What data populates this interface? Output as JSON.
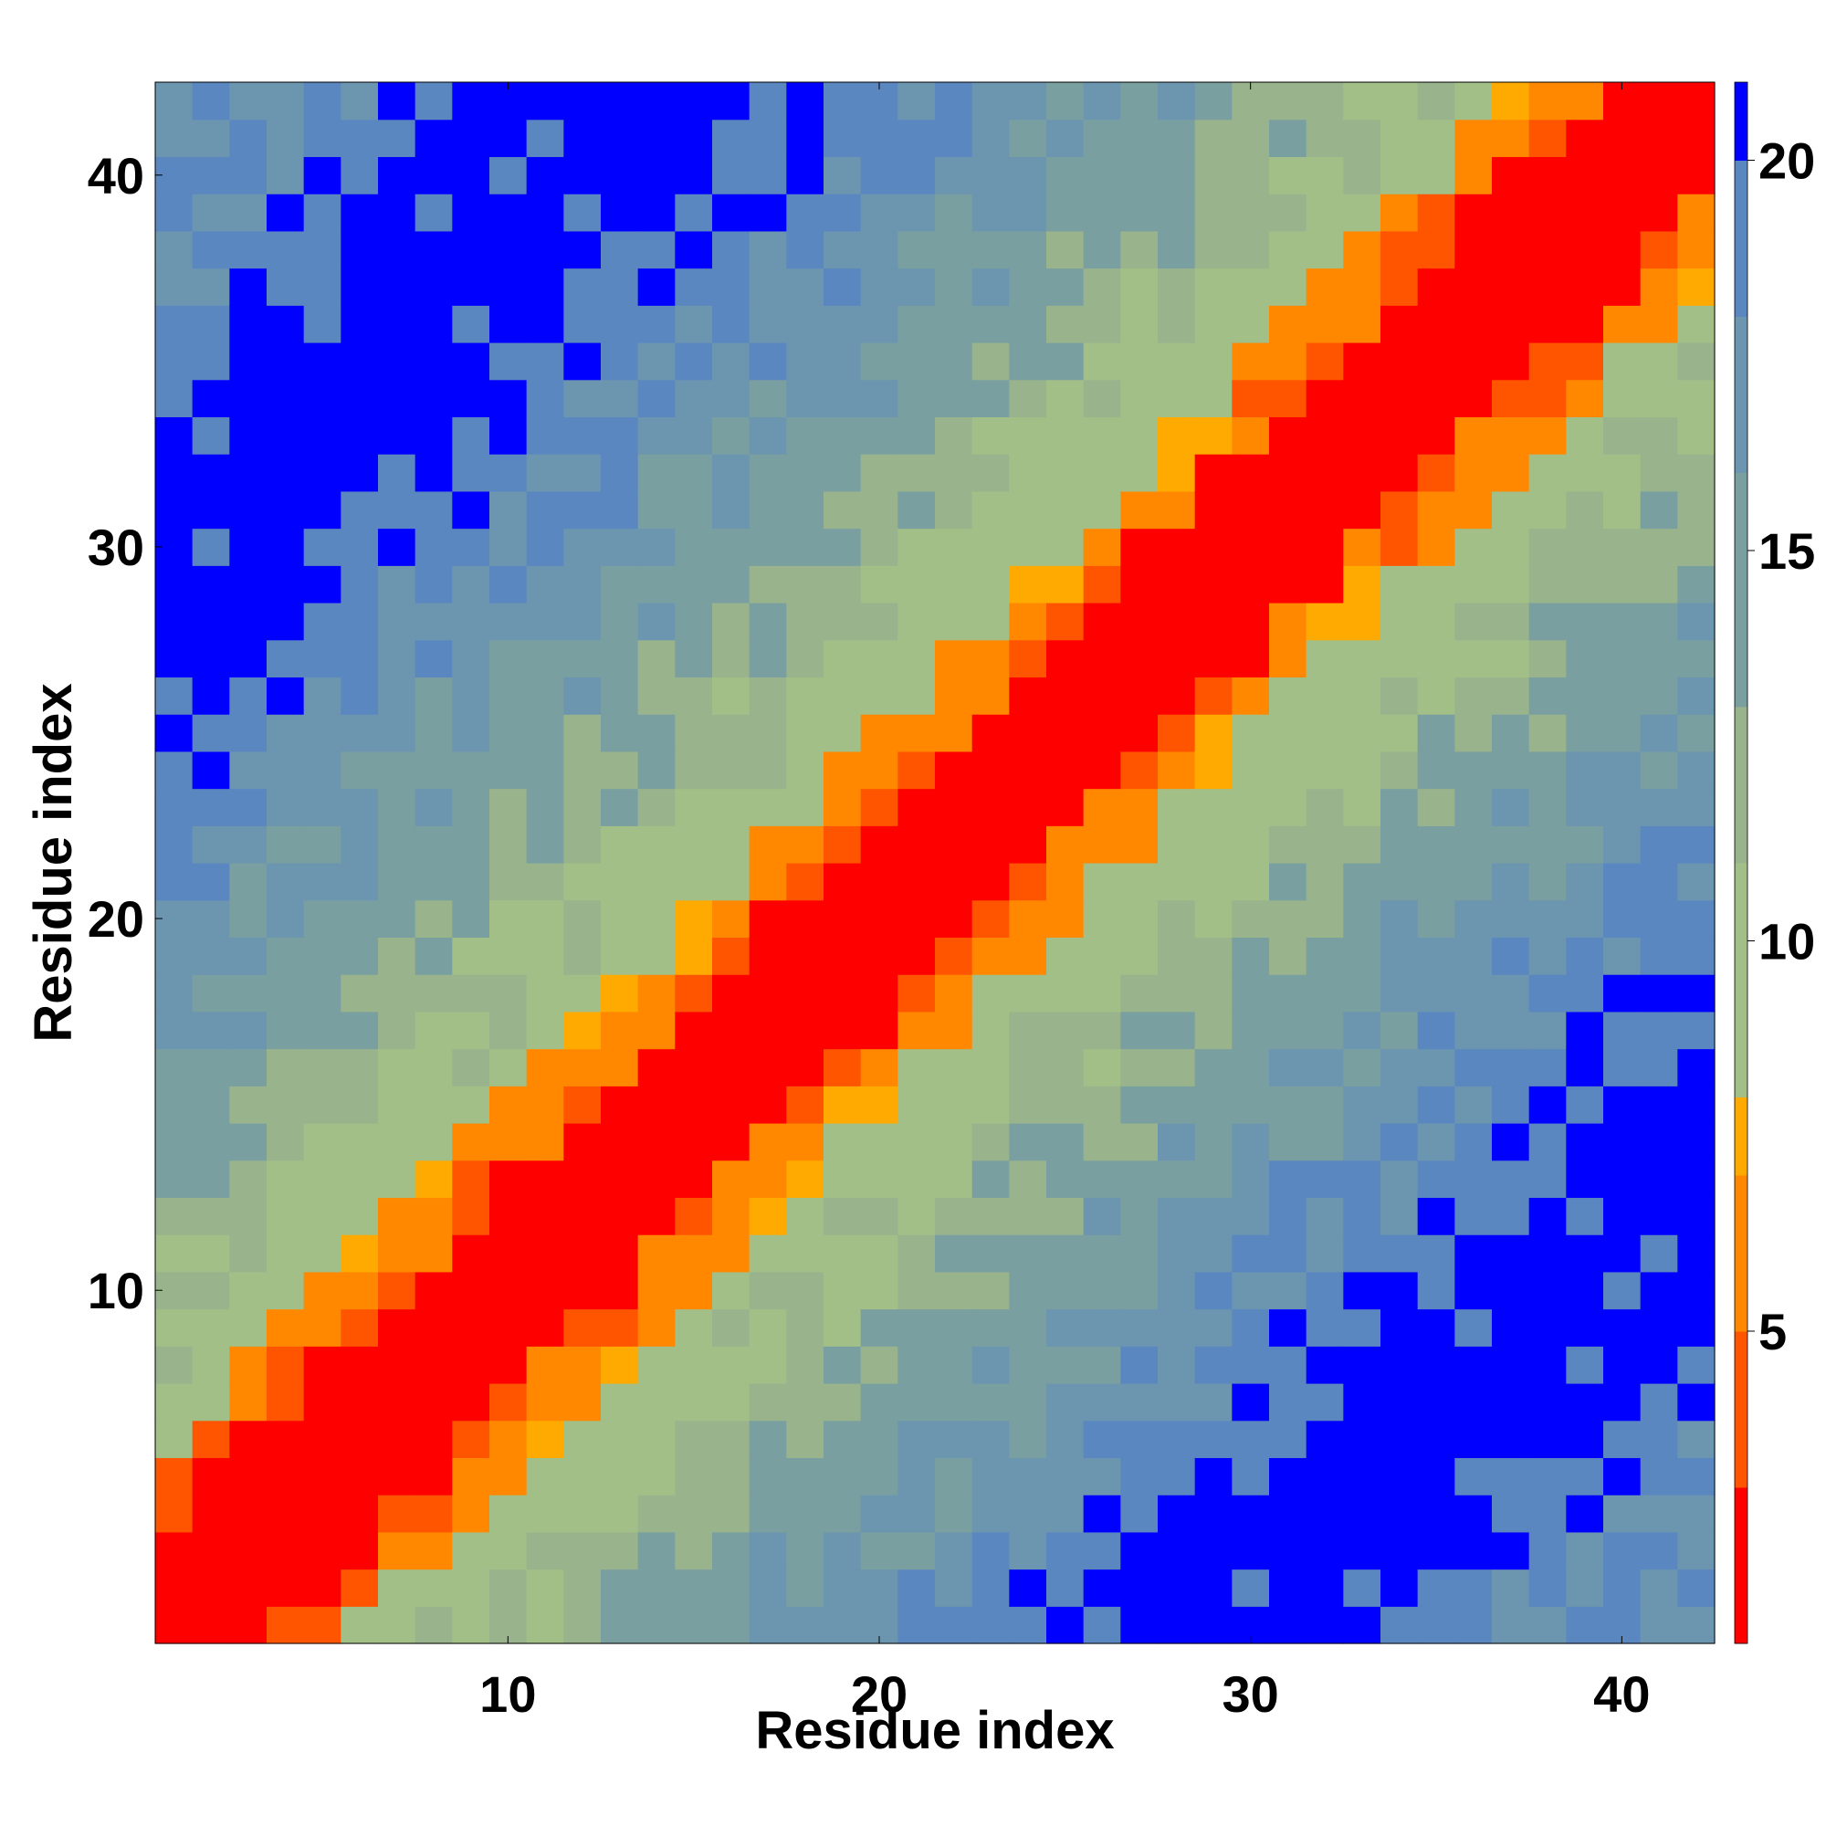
{
  "chart_data": {
    "type": "heatmap",
    "title": "",
    "xlabel": "Residue index",
    "ylabel": "Residue index",
    "x_range": [
      1,
      42
    ],
    "y_range": [
      1,
      42
    ],
    "x_ticks": [
      10,
      20,
      30,
      40
    ],
    "y_ticks": [
      10,
      20,
      30,
      40
    ],
    "colorbar": {
      "ticks": [
        5,
        10,
        15,
        20
      ],
      "range": [
        1,
        21
      ],
      "bands": [
        {
          "from": 1,
          "to": 3,
          "color": "#ff0000"
        },
        {
          "from": 3,
          "to": 5,
          "color": "#ff5500"
        },
        {
          "from": 5,
          "to": 7,
          "color": "#ff8800"
        },
        {
          "from": 7,
          "to": 8,
          "color": "#ffaa00"
        },
        {
          "from": 8,
          "to": 11,
          "color": "#a2bf88"
        },
        {
          "from": 11,
          "to": 13,
          "color": "#99b48c"
        },
        {
          "from": 13,
          "to": 16,
          "color": "#7a9fa0"
        },
        {
          "from": 16,
          "to": 18,
          "color": "#6c95b0"
        },
        {
          "from": 18,
          "to": 20,
          "color": "#5b87c0"
        },
        {
          "from": 20,
          "to": 21,
          "color": "#0000ff"
        }
      ]
    },
    "value_description": "Distance between residue pairs; near the diagonal values are small (red), far from diagonal large (blue). Values listed per diagonal offset |i-j| as representative approximations.",
    "diagonal_profile": {
      "offsets": [
        0,
        1,
        2,
        3,
        4,
        5,
        6,
        7,
        8,
        9,
        10,
        11,
        12,
        13,
        14,
        15,
        16,
        17,
        18,
        19,
        20,
        21,
        22,
        23,
        24,
        25,
        26,
        27,
        28,
        29,
        30,
        31,
        32,
        33,
        34,
        35,
        36,
        37,
        38,
        39,
        40,
        41
      ],
      "values": [
        2,
        2,
        2,
        4,
        6,
        7.5,
        9.5,
        10,
        10.5,
        11,
        12,
        12.5,
        13,
        14,
        15,
        15.5,
        16,
        16.5,
        17,
        17.5,
        18,
        18.5,
        19,
        19.5,
        20,
        20.5,
        20.5,
        21,
        21,
        21,
        21,
        20.5,
        20,
        19.5,
        19,
        19,
        18.5,
        18,
        18,
        17.5,
        17,
        17
      ]
    }
  }
}
